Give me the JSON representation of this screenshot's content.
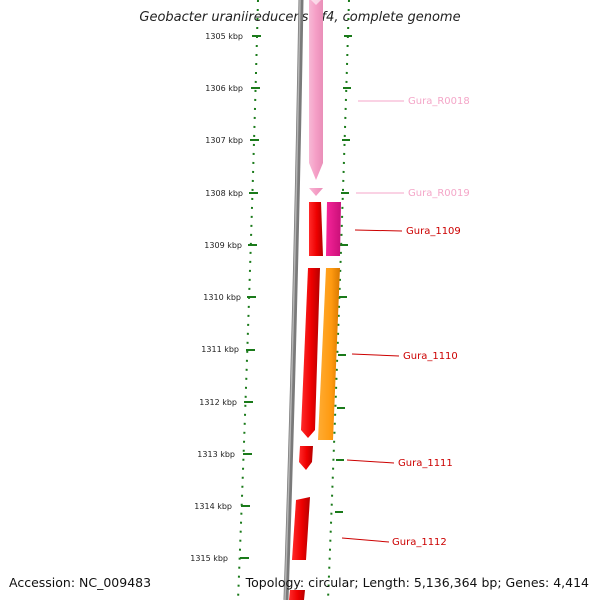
{
  "title": "Geobacter uraniireducens Rf4, complete genome",
  "footer": {
    "accession": "Accession: NC_009483",
    "summary": "Topology: circular; Length: 5,136,364 bp; Genes: 4,414"
  },
  "ruler": {
    "tick_labels": [
      "1305 kbp",
      "1306 kbp",
      "1307 kbp",
      "1308 kbp",
      "1309 kbp",
      "1310 kbp",
      "1311 kbp",
      "1312 kbp",
      "1313 kbp",
      "1314 kbp",
      "1315 kbp"
    ]
  },
  "features": [
    {
      "label": "Gura_R0018",
      "color": "#f4a6c8",
      "strand": "-",
      "type": "RNA"
    },
    {
      "label": "Gura_R0019",
      "color": "#f4a6c8",
      "strand": "-",
      "type": "RNA"
    },
    {
      "label": "Gura_1109",
      "color": "#ee0000",
      "strand": "+",
      "type": "gene"
    },
    {
      "label": "Gura_1110",
      "color": "#ee0000",
      "strand": "+",
      "type": "gene"
    },
    {
      "label": "Gura_1111",
      "color": "#ee0000",
      "strand": "+",
      "type": "gene"
    },
    {
      "label": "Gura_1112",
      "color": "#ee0000",
      "strand": "+",
      "type": "gene"
    }
  ],
  "colors": {
    "backbone": "#808080",
    "ruler_ticks": "#1a7a1a",
    "rna": "#f4a6c8",
    "cds": "#ee0000",
    "cds_magenta": "#e8158c",
    "cds_orange": "#ff9a10"
  }
}
